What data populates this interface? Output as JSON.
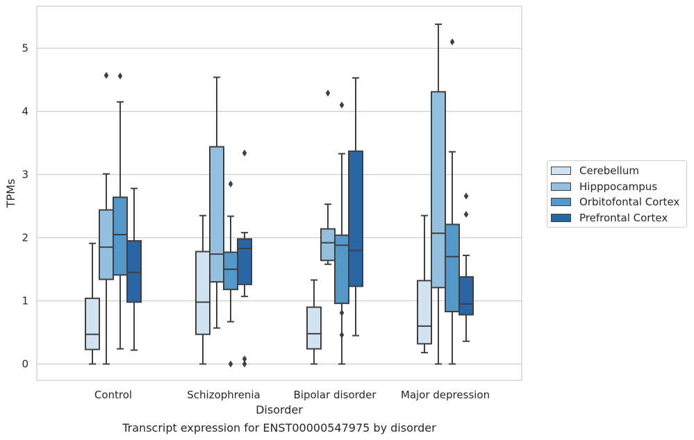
{
  "chart_data": {
    "type": "box",
    "title": "Transcript expression for ENST00000547975 by disorder",
    "xlabel": "Disorder",
    "ylabel": "TPMs",
    "categories": [
      "Control",
      "Schizophrenia",
      "Bipolar disorder",
      "Major depression"
    ],
    "ylim": [
      -0.25,
      5.65
    ],
    "yticks": [
      0,
      1,
      2,
      3,
      4,
      5
    ],
    "grid": "horizontal",
    "legend_position": "outside-right",
    "series": [
      {
        "name": "Cerebellum",
        "color": "#d2e2f1",
        "boxes": [
          {
            "whisker_low": 0.0,
            "q1": 0.23,
            "median": 0.47,
            "q3": 1.04,
            "whisker_high": 1.91,
            "outliers": []
          },
          {
            "whisker_low": 0.0,
            "q1": 0.47,
            "median": 0.98,
            "q3": 1.78,
            "whisker_high": 2.35,
            "outliers": []
          },
          {
            "whisker_low": 0.0,
            "q1": 0.24,
            "median": 0.48,
            "q3": 0.9,
            "whisker_high": 1.33,
            "outliers": []
          },
          {
            "whisker_low": 0.18,
            "q1": 0.32,
            "median": 0.6,
            "q3": 1.32,
            "whisker_high": 2.35,
            "outliers": []
          }
        ]
      },
      {
        "name": "Hipppocampus",
        "color": "#94c0de",
        "boxes": [
          {
            "whisker_low": 0.0,
            "q1": 1.34,
            "median": 1.85,
            "q3": 2.44,
            "whisker_high": 3.01,
            "outliers": [
              4.57
            ]
          },
          {
            "whisker_low": 0.57,
            "q1": 1.3,
            "median": 1.74,
            "q3": 3.44,
            "whisker_high": 4.54,
            "outliers": []
          },
          {
            "whisker_low": 1.58,
            "q1": 1.64,
            "median": 1.92,
            "q3": 2.14,
            "whisker_high": 2.53,
            "outliers": [
              4.29
            ]
          },
          {
            "whisker_low": 0.0,
            "q1": 1.21,
            "median": 2.07,
            "q3": 4.31,
            "whisker_high": 5.38,
            "outliers": []
          }
        ]
      },
      {
        "name": "Orbitofontal Cortex",
        "color": "#5498c9",
        "boxes": [
          {
            "whisker_low": 0.24,
            "q1": 1.41,
            "median": 2.05,
            "q3": 2.64,
            "whisker_high": 4.15,
            "outliers": [
              4.56
            ]
          },
          {
            "whisker_low": 0.67,
            "q1": 1.18,
            "median": 1.5,
            "q3": 1.77,
            "whisker_high": 2.34,
            "outliers": [
              2.85,
              0.0
            ]
          },
          {
            "whisker_low": 0.0,
            "q1": 0.96,
            "median": 1.88,
            "q3": 2.04,
            "whisker_high": 3.33,
            "outliers": [
              4.1,
              0.81,
              0.46
            ]
          },
          {
            "whisker_low": 0.0,
            "q1": 0.83,
            "median": 1.7,
            "q3": 2.21,
            "whisker_high": 3.36,
            "outliers": [
              5.1
            ]
          }
        ]
      },
      {
        "name": "Prefrontal Cortex",
        "color": "#2a66a6",
        "boxes": [
          {
            "whisker_low": 0.22,
            "q1": 0.98,
            "median": 1.45,
            "q3": 1.95,
            "whisker_high": 2.78,
            "outliers": []
          },
          {
            "whisker_low": 1.07,
            "q1": 1.26,
            "median": 1.83,
            "q3": 1.98,
            "whisker_high": 2.08,
            "outliers": [
              3.34,
              0.08,
              0.0
            ]
          },
          {
            "whisker_low": 0.45,
            "q1": 1.23,
            "median": 1.8,
            "q3": 3.37,
            "whisker_high": 4.53,
            "outliers": []
          },
          {
            "whisker_low": 0.36,
            "q1": 0.78,
            "median": 0.95,
            "q3": 1.38,
            "whisker_high": 1.72,
            "outliers": [
              2.66,
              2.37
            ]
          }
        ]
      }
    ]
  }
}
